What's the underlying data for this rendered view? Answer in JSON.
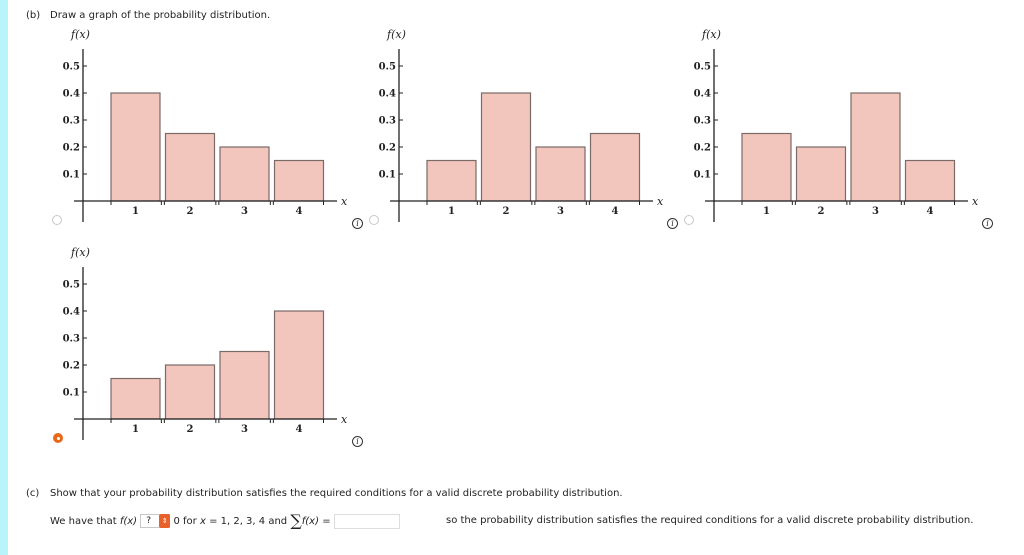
{
  "part_b": {
    "label": "(b)",
    "prompt": "Draw a graph of the probability distribution."
  },
  "graphs": [
    {
      "id": "option-a",
      "ylabel": "f(x)",
      "xlabel": "x",
      "selected": false,
      "values": [
        0.4,
        0.25,
        0.2,
        0.15
      ]
    },
    {
      "id": "option-b",
      "ylabel": "f(x)",
      "xlabel": "x",
      "selected": false,
      "values": [
        0.15,
        0.4,
        0.2,
        0.25
      ]
    },
    {
      "id": "option-c",
      "ylabel": "f(x)",
      "xlabel": "x",
      "selected": false,
      "values": [
        0.25,
        0.2,
        0.4,
        0.15
      ]
    },
    {
      "id": "option-d",
      "ylabel": "f(x)",
      "xlabel": "x",
      "selected": true,
      "values": [
        0.15,
        0.2,
        0.25,
        0.4
      ]
    }
  ],
  "axis": {
    "yticks": [
      "0.5",
      "0.4",
      "0.3",
      "0.2",
      "0.1"
    ],
    "xticks": [
      "1",
      "2",
      "3",
      "4"
    ]
  },
  "colors": {
    "bar_fill": "#f2c6bd",
    "bar_stroke": "#7a6a68",
    "selected_radio": "#e8681a",
    "left_strip": "#b8f4fa"
  },
  "info_icon_glyph": "i",
  "part_c": {
    "label": "(c)",
    "prompt": "Show that your probability distribution satisfies the required conditions for a valid discrete probability distribution.",
    "line_prefix": "We have that",
    "fx": "f(x)",
    "select_value": "?",
    "after_select": "0 for",
    "xvar": "x",
    "x_values": "= 1, 2, 3, 4 and",
    "sigma": "∑",
    "sum_expr": "f(x)",
    "equals": "=",
    "input_value": "",
    "suffix": "so the probability distribution satisfies the required conditions for a valid discrete probability distribution."
  },
  "chart_data": [
    {
      "type": "bar",
      "title": "Option A",
      "categories": [
        "1",
        "2",
        "3",
        "4"
      ],
      "values": [
        0.4,
        0.25,
        0.2,
        0.15
      ],
      "xlabel": "x",
      "ylabel": "f(x)",
      "ylim": [
        0,
        0.5
      ],
      "yticks": [
        0.1,
        0.2,
        0.3,
        0.4,
        0.5
      ]
    },
    {
      "type": "bar",
      "title": "Option B",
      "categories": [
        "1",
        "2",
        "3",
        "4"
      ],
      "values": [
        0.15,
        0.4,
        0.2,
        0.25
      ],
      "xlabel": "x",
      "ylabel": "f(x)",
      "ylim": [
        0,
        0.5
      ],
      "yticks": [
        0.1,
        0.2,
        0.3,
        0.4,
        0.5
      ]
    },
    {
      "type": "bar",
      "title": "Option C",
      "categories": [
        "1",
        "2",
        "3",
        "4"
      ],
      "values": [
        0.25,
        0.2,
        0.4,
        0.15
      ],
      "xlabel": "x",
      "ylabel": "f(x)",
      "ylim": [
        0,
        0.5
      ],
      "yticks": [
        0.1,
        0.2,
        0.3,
        0.4,
        0.5
      ]
    },
    {
      "type": "bar",
      "title": "Option D (selected)",
      "categories": [
        "1",
        "2",
        "3",
        "4"
      ],
      "values": [
        0.15,
        0.2,
        0.25,
        0.4
      ],
      "xlabel": "x",
      "ylabel": "f(x)",
      "ylim": [
        0,
        0.5
      ],
      "yticks": [
        0.1,
        0.2,
        0.3,
        0.4,
        0.5
      ]
    }
  ]
}
